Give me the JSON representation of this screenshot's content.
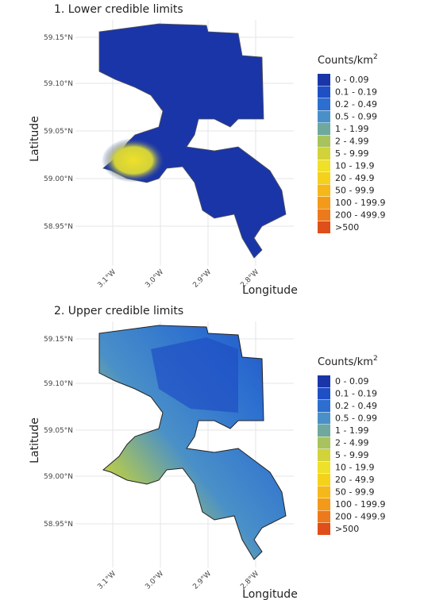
{
  "panels": [
    {
      "title": "1. Lower credible limits"
    },
    {
      "title": "2. Upper credible limits"
    }
  ],
  "axes": {
    "y_label": "Latitude",
    "x_label": "Longitude",
    "y_ticks": [
      "59.15°N",
      "59.10°N",
      "59.05°N",
      "59.00°N",
      "58.95°N"
    ],
    "x_ticks": [
      "3.1°W",
      "3.0°W",
      "2.9°W",
      "2.8°W"
    ]
  },
  "legend": {
    "title": "Counts/km",
    "title_sup": "2",
    "items": [
      {
        "label": "0 - 0.09",
        "color": "#1a35a8"
      },
      {
        "label": "0.1 - 0.19",
        "color": "#1f4fc4"
      },
      {
        "label": "0.2 - 0.49",
        "color": "#2c6fd0"
      },
      {
        "label": "0.5 - 0.99",
        "color": "#4a90c8"
      },
      {
        "label": "1 - 1.99",
        "color": "#6fa89c"
      },
      {
        "label": "2 - 4.99",
        "color": "#a8c35e"
      },
      {
        "label": "5 - 9.99",
        "color": "#d2d23a"
      },
      {
        "label": "10 - 19.9",
        "color": "#efe02a"
      },
      {
        "label": "20 - 49.9",
        "color": "#f4d21c"
      },
      {
        "label": "50 - 99.9",
        "color": "#f5b81a"
      },
      {
        "label": "100 - 199.9",
        "color": "#f39a1a"
      },
      {
        "label": "200 - 499.9",
        "color": "#ec7a1c"
      },
      {
        "label": ">500",
        "color": "#e04e1a"
      }
    ]
  }
}
